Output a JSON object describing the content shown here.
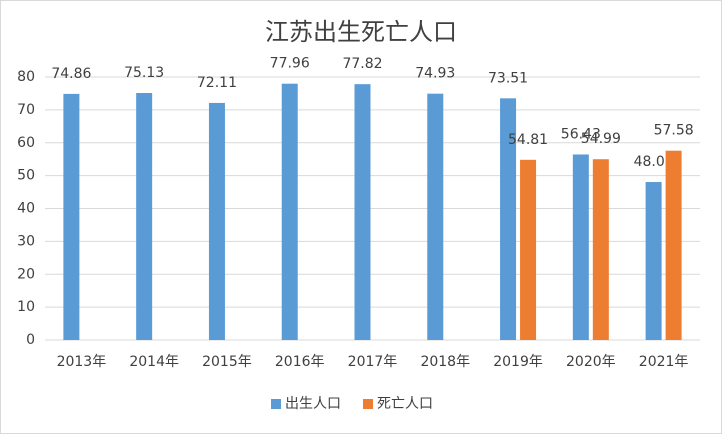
{
  "chart_data": {
    "type": "bar",
    "title": "江苏出生死亡人口",
    "categories": [
      "2013年",
      "2014年",
      "2015年",
      "2016年",
      "2017年",
      "2018年",
      "2019年",
      "2020年",
      "2021年"
    ],
    "series": [
      {
        "name": "出生人口",
        "color": "#5b9bd5",
        "values": [
          74.86,
          75.13,
          72.11,
          77.96,
          77.82,
          74.93,
          73.51,
          56.43,
          48.05
        ]
      },
      {
        "name": "死亡人口",
        "color": "#ed7d31",
        "values": [
          null,
          null,
          null,
          null,
          null,
          null,
          54.81,
          54.99,
          57.58
        ]
      }
    ],
    "ylim": [
      0,
      80
    ],
    "yticks": [
      0,
      10,
      20,
      30,
      40,
      50,
      60,
      70,
      80
    ],
    "grid": true,
    "legend": "bottom"
  }
}
